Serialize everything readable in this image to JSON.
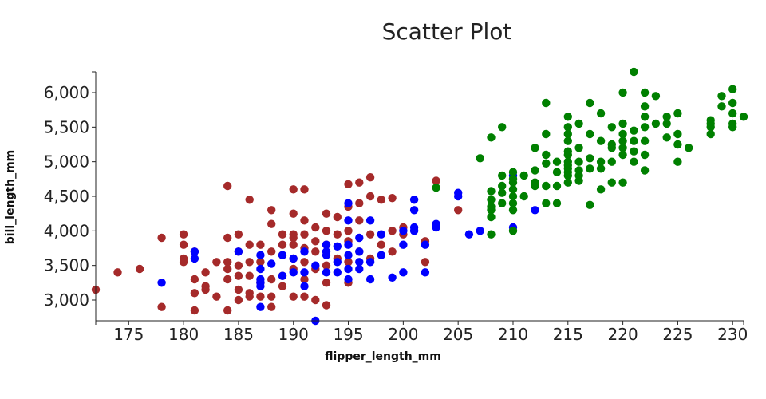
{
  "chart_data": {
    "type": "scatter",
    "title": "Scatter Plot",
    "xlabel": "flipper_length_mm",
    "ylabel": "bill_length_mm",
    "xlim": [
      172,
      231
    ],
    "ylim": [
      2700,
      6300
    ],
    "xticks": [
      175,
      180,
      185,
      190,
      195,
      200,
      205,
      210,
      215,
      220,
      225,
      230
    ],
    "yticks": [
      3000,
      3500,
      4000,
      4500,
      5000,
      5500,
      6000
    ],
    "ytick_labels": [
      "3,000",
      "3,500",
      "4,000",
      "4,500",
      "5,000",
      "5,500",
      "6,000"
    ],
    "grid": false,
    "legend": "none",
    "series": [
      {
        "color": "#a52a2a",
        "points": [
          [
            172,
            3150
          ],
          [
            174,
            3400
          ],
          [
            176,
            3450
          ],
          [
            178,
            3900
          ],
          [
            178,
            2900
          ],
          [
            180,
            3950
          ],
          [
            180,
            3800
          ],
          [
            180,
            3600
          ],
          [
            180,
            3550
          ],
          [
            181,
            3700
          ],
          [
            181,
            3300
          ],
          [
            181,
            3100
          ],
          [
            181,
            2850
          ],
          [
            182,
            3400
          ],
          [
            182,
            3200
          ],
          [
            182,
            3150
          ],
          [
            183,
            3550
          ],
          [
            183,
            3050
          ],
          [
            184,
            4650
          ],
          [
            184,
            3900
          ],
          [
            184,
            3550
          ],
          [
            184,
            3450
          ],
          [
            184,
            3300
          ],
          [
            184,
            2850
          ],
          [
            185,
            3950
          ],
          [
            185,
            3700
          ],
          [
            185,
            3500
          ],
          [
            185,
            3350
          ],
          [
            185,
            3150
          ],
          [
            185,
            3000
          ],
          [
            186,
            4450
          ],
          [
            186,
            3800
          ],
          [
            186,
            3550
          ],
          [
            186,
            3350
          ],
          [
            186,
            3100
          ],
          [
            186,
            3050
          ],
          [
            187,
            3800
          ],
          [
            187,
            3550
          ],
          [
            187,
            3250
          ],
          [
            187,
            3050
          ],
          [
            188,
            4300
          ],
          [
            188,
            4100
          ],
          [
            188,
            3700
          ],
          [
            188,
            3300
          ],
          [
            188,
            3050
          ],
          [
            188,
            2900
          ],
          [
            189,
            3950
          ],
          [
            189,
            3800
          ],
          [
            189,
            3650
          ],
          [
            189,
            3350
          ],
          [
            189,
            3200
          ],
          [
            190,
            4600
          ],
          [
            190,
            4250
          ],
          [
            190,
            3950
          ],
          [
            190,
            3900
          ],
          [
            190,
            3800
          ],
          [
            190,
            3600
          ],
          [
            190,
            3450
          ],
          [
            190,
            3050
          ],
          [
            191,
            4600
          ],
          [
            191,
            4150
          ],
          [
            191,
            3950
          ],
          [
            191,
            3750
          ],
          [
            191,
            3550
          ],
          [
            191,
            3300
          ],
          [
            191,
            3050
          ],
          [
            192,
            4050
          ],
          [
            192,
            3850
          ],
          [
            192,
            3700
          ],
          [
            192,
            3450
          ],
          [
            192,
            3000
          ],
          [
            193,
            4250
          ],
          [
            193,
            4000
          ],
          [
            193,
            3800
          ],
          [
            193,
            3500
          ],
          [
            193,
            3250
          ],
          [
            193,
            2925
          ],
          [
            194,
            4200
          ],
          [
            194,
            3950
          ],
          [
            194,
            3600
          ],
          [
            195,
            4675
          ],
          [
            195,
            4350
          ],
          [
            195,
            4000
          ],
          [
            195,
            3850
          ],
          [
            195,
            3550
          ],
          [
            195,
            3250
          ],
          [
            196,
            4700
          ],
          [
            196,
            4400
          ],
          [
            196,
            4150
          ],
          [
            196,
            3700
          ],
          [
            197,
            4775
          ],
          [
            197,
            4500
          ],
          [
            197,
            3950
          ],
          [
            197,
            3600
          ],
          [
            198,
            4450
          ],
          [
            198,
            3800
          ],
          [
            199,
            4475
          ],
          [
            199,
            4000
          ],
          [
            199,
            3700
          ],
          [
            200,
            4050
          ],
          [
            200,
            3950
          ],
          [
            202,
            3850
          ],
          [
            202,
            3550
          ],
          [
            203,
            4725
          ],
          [
            205,
            4300
          ]
        ]
      },
      {
        "color": "#0000ff",
        "points": [
          [
            178,
            3250
          ],
          [
            181,
            3700
          ],
          [
            181,
            3600
          ],
          [
            185,
            3700
          ],
          [
            187,
            3650
          ],
          [
            187,
            3450
          ],
          [
            187,
            3300
          ],
          [
            187,
            3250
          ],
          [
            187,
            3200
          ],
          [
            187,
            2900
          ],
          [
            188,
            3525
          ],
          [
            189,
            3650
          ],
          [
            189,
            3350
          ],
          [
            190,
            3600
          ],
          [
            190,
            3400
          ],
          [
            191,
            3700
          ],
          [
            191,
            3400
          ],
          [
            191,
            3200
          ],
          [
            192,
            3500
          ],
          [
            192,
            2700
          ],
          [
            193,
            3800
          ],
          [
            193,
            3700
          ],
          [
            193,
            3650
          ],
          [
            193,
            3400
          ],
          [
            194,
            3775
          ],
          [
            194,
            3550
          ],
          [
            194,
            3400
          ],
          [
            195,
            4400
          ],
          [
            195,
            4150
          ],
          [
            195,
            3800
          ],
          [
            195,
            3650
          ],
          [
            195,
            3450
          ],
          [
            195,
            3300
          ],
          [
            196,
            3900
          ],
          [
            196,
            3700
          ],
          [
            196,
            3550
          ],
          [
            196,
            3450
          ],
          [
            197,
            4150
          ],
          [
            197,
            3550
          ],
          [
            197,
            3300
          ],
          [
            198,
            3950
          ],
          [
            198,
            3650
          ],
          [
            199,
            3325
          ],
          [
            200,
            4000
          ],
          [
            200,
            3800
          ],
          [
            200,
            3400
          ],
          [
            201,
            4450
          ],
          [
            201,
            4300
          ],
          [
            201,
            4050
          ],
          [
            201,
            4000
          ],
          [
            202,
            3800
          ],
          [
            202,
            3400
          ],
          [
            203,
            4100
          ],
          [
            203,
            4050
          ],
          [
            205,
            4550
          ],
          [
            205,
            4500
          ],
          [
            206,
            3950
          ],
          [
            207,
            4000
          ],
          [
            210,
            4800
          ],
          [
            210,
            4050
          ],
          [
            212,
            4300
          ]
        ]
      },
      {
        "color": "#008000",
        "points": [
          [
            203,
            4625
          ],
          [
            207,
            5050
          ],
          [
            208,
            5350
          ],
          [
            208,
            4575
          ],
          [
            208,
            4450
          ],
          [
            208,
            4350
          ],
          [
            208,
            4300
          ],
          [
            208,
            4200
          ],
          [
            208,
            3950
          ],
          [
            209,
            5500
          ],
          [
            209,
            4800
          ],
          [
            209,
            4650
          ],
          [
            209,
            4550
          ],
          [
            209,
            4400
          ],
          [
            210,
            4850
          ],
          [
            210,
            4750
          ],
          [
            210,
            4700
          ],
          [
            210,
            4600
          ],
          [
            210,
            4500
          ],
          [
            210,
            4400
          ],
          [
            210,
            4300
          ],
          [
            210,
            4000
          ],
          [
            211,
            4800
          ],
          [
            211,
            4500
          ],
          [
            212,
            5200
          ],
          [
            212,
            4875
          ],
          [
            212,
            4700
          ],
          [
            212,
            4650
          ],
          [
            213,
            5850
          ],
          [
            213,
            5400
          ],
          [
            213,
            5100
          ],
          [
            213,
            4975
          ],
          [
            213,
            4650
          ],
          [
            213,
            4400
          ],
          [
            214,
            5000
          ],
          [
            214,
            4850
          ],
          [
            214,
            4650
          ],
          [
            214,
            4400
          ],
          [
            215,
            5650
          ],
          [
            215,
            5500
          ],
          [
            215,
            5400
          ],
          [
            215,
            5300
          ],
          [
            215,
            5150
          ],
          [
            215,
            5100
          ],
          [
            215,
            5000
          ],
          [
            215,
            4950
          ],
          [
            215,
            4900
          ],
          [
            215,
            4850
          ],
          [
            215,
            4800
          ],
          [
            215,
            4700
          ],
          [
            216,
            5550
          ],
          [
            216,
            5200
          ],
          [
            216,
            5000
          ],
          [
            216,
            4875
          ],
          [
            216,
            4800
          ],
          [
            216,
            4725
          ],
          [
            217,
            5850
          ],
          [
            217,
            5400
          ],
          [
            217,
            5050
          ],
          [
            217,
            4900
          ],
          [
            217,
            4375
          ],
          [
            218,
            5700
          ],
          [
            218,
            5300
          ],
          [
            218,
            5000
          ],
          [
            218,
            4900
          ],
          [
            218,
            4600
          ],
          [
            219,
            5500
          ],
          [
            219,
            5250
          ],
          [
            219,
            5200
          ],
          [
            219,
            5000
          ],
          [
            219,
            4700
          ],
          [
            220,
            6000
          ],
          [
            220,
            5550
          ],
          [
            220,
            5400
          ],
          [
            220,
            5300
          ],
          [
            220,
            5200
          ],
          [
            220,
            5100
          ],
          [
            220,
            4700
          ],
          [
            221,
            6300
          ],
          [
            221,
            5450
          ],
          [
            221,
            5300
          ],
          [
            221,
            5150
          ],
          [
            221,
            5000
          ],
          [
            222,
            6000
          ],
          [
            222,
            5800
          ],
          [
            222,
            5650
          ],
          [
            222,
            5500
          ],
          [
            222,
            5300
          ],
          [
            222,
            5100
          ],
          [
            222,
            4875
          ],
          [
            223,
            5950
          ],
          [
            223,
            5550
          ],
          [
            224,
            5650
          ],
          [
            224,
            5550
          ],
          [
            224,
            5350
          ],
          [
            225,
            5700
          ],
          [
            225,
            5400
          ],
          [
            225,
            5250
          ],
          [
            225,
            5000
          ],
          [
            226,
            5200
          ],
          [
            228,
            5600
          ],
          [
            228,
            5550
          ],
          [
            228,
            5500
          ],
          [
            228,
            5400
          ],
          [
            229,
            5950
          ],
          [
            229,
            5800
          ],
          [
            230,
            6050
          ],
          [
            230,
            5850
          ],
          [
            230,
            5700
          ],
          [
            230,
            5550
          ],
          [
            230,
            5500
          ],
          [
            231,
            5650
          ]
        ]
      }
    ]
  }
}
